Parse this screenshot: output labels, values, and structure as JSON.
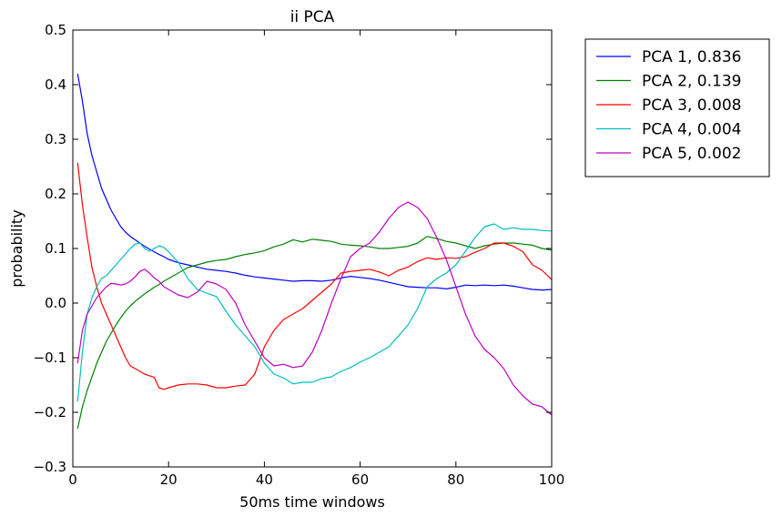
{
  "chart_data": {
    "type": "line",
    "title": "ii PCA",
    "xlabel": "50ms time windows",
    "ylabel": "probability",
    "xlim": [
      0,
      100
    ],
    "ylim": [
      -0.3,
      0.5
    ],
    "xticks": [
      0,
      20,
      40,
      60,
      80,
      100
    ],
    "yticks": [
      -0.3,
      -0.2,
      -0.1,
      0.0,
      0.1,
      0.2,
      0.3,
      0.4,
      0.5
    ],
    "xtick_labels": [
      "0",
      "20",
      "40",
      "60",
      "80",
      "100"
    ],
    "ytick_labels": [
      "−0.3",
      "−0.2",
      "−0.1",
      "0.0",
      "0.1",
      "0.2",
      "0.3",
      "0.4",
      "0.5"
    ],
    "grid": false,
    "legend": "outside-top-right",
    "x": [
      1,
      2,
      3,
      4,
      5,
      6,
      7,
      8,
      9,
      10,
      11,
      12,
      13,
      14,
      15,
      16,
      17,
      18,
      19,
      20,
      22,
      24,
      26,
      28,
      30,
      32,
      34,
      36,
      38,
      40,
      42,
      44,
      46,
      48,
      50,
      52,
      54,
      56,
      58,
      60,
      62,
      64,
      66,
      68,
      70,
      72,
      74,
      76,
      78,
      80,
      82,
      84,
      86,
      88,
      90,
      92,
      94,
      96,
      98,
      100
    ],
    "series": [
      {
        "name": "PCA 1, 0.836",
        "color": "#0000ff",
        "values": [
          0.42,
          0.37,
          0.31,
          0.27,
          0.24,
          0.21,
          0.19,
          0.17,
          0.155,
          0.14,
          0.13,
          0.122,
          0.116,
          0.11,
          0.104,
          0.099,
          0.094,
          0.089,
          0.085,
          0.08,
          0.074,
          0.07,
          0.066,
          0.062,
          0.06,
          0.058,
          0.055,
          0.051,
          0.048,
          0.046,
          0.044,
          0.042,
          0.04,
          0.041,
          0.041,
          0.04,
          0.042,
          0.046,
          0.049,
          0.047,
          0.045,
          0.042,
          0.038,
          0.034,
          0.03,
          0.029,
          0.028,
          0.028,
          0.026,
          0.029,
          0.033,
          0.032,
          0.033,
          0.032,
          0.033,
          0.031,
          0.028,
          0.025,
          0.024,
          0.025
        ]
      },
      {
        "name": "PCA 2, 0.139",
        "color": "#008000",
        "values": [
          -0.23,
          -0.19,
          -0.16,
          -0.135,
          -0.11,
          -0.09,
          -0.07,
          -0.055,
          -0.04,
          -0.027,
          -0.015,
          -0.005,
          0.003,
          0.01,
          0.017,
          0.023,
          0.029,
          0.034,
          0.04,
          0.045,
          0.055,
          0.065,
          0.07,
          0.075,
          0.078,
          0.08,
          0.085,
          0.089,
          0.092,
          0.096,
          0.103,
          0.108,
          0.116,
          0.112,
          0.117,
          0.115,
          0.113,
          0.108,
          0.106,
          0.105,
          0.103,
          0.1,
          0.1,
          0.102,
          0.104,
          0.11,
          0.122,
          0.118,
          0.113,
          0.11,
          0.105,
          0.1,
          0.105,
          0.108,
          0.11,
          0.11,
          0.108,
          0.106,
          0.1,
          0.097
        ]
      },
      {
        "name": "PCA 3, 0.008",
        "color": "#ff0000",
        "values": [
          0.257,
          0.18,
          0.12,
          0.065,
          0.03,
          0.0,
          -0.02,
          -0.04,
          -0.06,
          -0.08,
          -0.1,
          -0.115,
          -0.12,
          -0.125,
          -0.13,
          -0.133,
          -0.136,
          -0.155,
          -0.158,
          -0.155,
          -0.15,
          -0.148,
          -0.148,
          -0.15,
          -0.155,
          -0.155,
          -0.152,
          -0.15,
          -0.13,
          -0.08,
          -0.05,
          -0.03,
          -0.02,
          -0.01,
          0.005,
          0.02,
          0.035,
          0.055,
          0.058,
          0.06,
          0.062,
          0.057,
          0.05,
          0.06,
          0.066,
          0.076,
          0.083,
          0.08,
          0.083,
          0.082,
          0.085,
          0.093,
          0.1,
          0.11,
          0.11,
          0.104,
          0.094,
          0.07,
          0.06,
          0.043
        ]
      },
      {
        "name": "PCA 4, 0.004",
        "color": "#00bfbf",
        "values": [
          -0.18,
          -0.09,
          -0.02,
          0.01,
          0.03,
          0.045,
          0.05,
          0.06,
          0.07,
          0.08,
          0.09,
          0.1,
          0.108,
          0.11,
          0.1,
          0.095,
          0.1,
          0.105,
          0.102,
          0.094,
          0.075,
          0.045,
          0.025,
          0.018,
          0.012,
          -0.015,
          -0.04,
          -0.06,
          -0.08,
          -0.11,
          -0.13,
          -0.137,
          -0.148,
          -0.145,
          -0.145,
          -0.138,
          -0.135,
          -0.125,
          -0.118,
          -0.108,
          -0.1,
          -0.09,
          -0.08,
          -0.06,
          -0.04,
          -0.01,
          0.03,
          0.045,
          0.055,
          0.07,
          0.095,
          0.12,
          0.14,
          0.145,
          0.135,
          0.138,
          0.135,
          0.135,
          0.133,
          0.132
        ]
      },
      {
        "name": "PCA 5, 0.002",
        "color": "#bf00bf",
        "values": [
          -0.11,
          -0.05,
          -0.02,
          -0.005,
          0.01,
          0.02,
          0.03,
          0.036,
          0.035,
          0.033,
          0.035,
          0.04,
          0.048,
          0.058,
          0.062,
          0.055,
          0.046,
          0.04,
          0.03,
          0.025,
          0.015,
          0.01,
          0.02,
          0.04,
          0.035,
          0.025,
          0.0,
          -0.04,
          -0.07,
          -0.1,
          -0.115,
          -0.112,
          -0.118,
          -0.115,
          -0.09,
          -0.05,
          0.0,
          0.045,
          0.085,
          0.1,
          0.11,
          0.13,
          0.155,
          0.175,
          0.185,
          0.175,
          0.155,
          0.12,
          0.08,
          0.03,
          -0.02,
          -0.06,
          -0.085,
          -0.1,
          -0.12,
          -0.15,
          -0.17,
          -0.185,
          -0.19,
          -0.205
        ]
      }
    ]
  }
}
